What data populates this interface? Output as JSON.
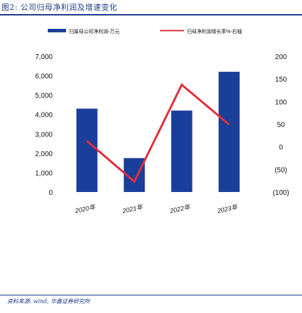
{
  "figure": {
    "caption": "图2: 公司归母净利润及增速变化",
    "source": "资料来源: wind, 华鑫证券研究所"
  },
  "chart_data": {
    "type": "bar",
    "categories": [
      "2020年",
      "2021年",
      "2022年",
      "2023年"
    ],
    "series": [
      {
        "name": "归属母公司净利润-万元",
        "type": "bar",
        "axis": "left",
        "values": [
          4300,
          1750,
          4200,
          6200
        ],
        "color": "#1a3f9a"
      },
      {
        "name": "归母净利润增长率%-右轴",
        "type": "line",
        "axis": "right",
        "values": [
          13,
          -77,
          137,
          49
        ],
        "color": "#e0303a"
      }
    ],
    "y_left": {
      "lim": [
        0,
        7000
      ],
      "ticks": [
        "0",
        "1,000",
        "2,000",
        "3,000",
        "4,000",
        "5,000",
        "6,000",
        "7,000"
      ]
    },
    "y_right": {
      "lim": [
        -100,
        200
      ],
      "ticks": [
        "(100)",
        "(50)",
        "0",
        "50",
        "100",
        "150",
        "200"
      ]
    },
    "legend_position": "top-center",
    "grid": false
  }
}
